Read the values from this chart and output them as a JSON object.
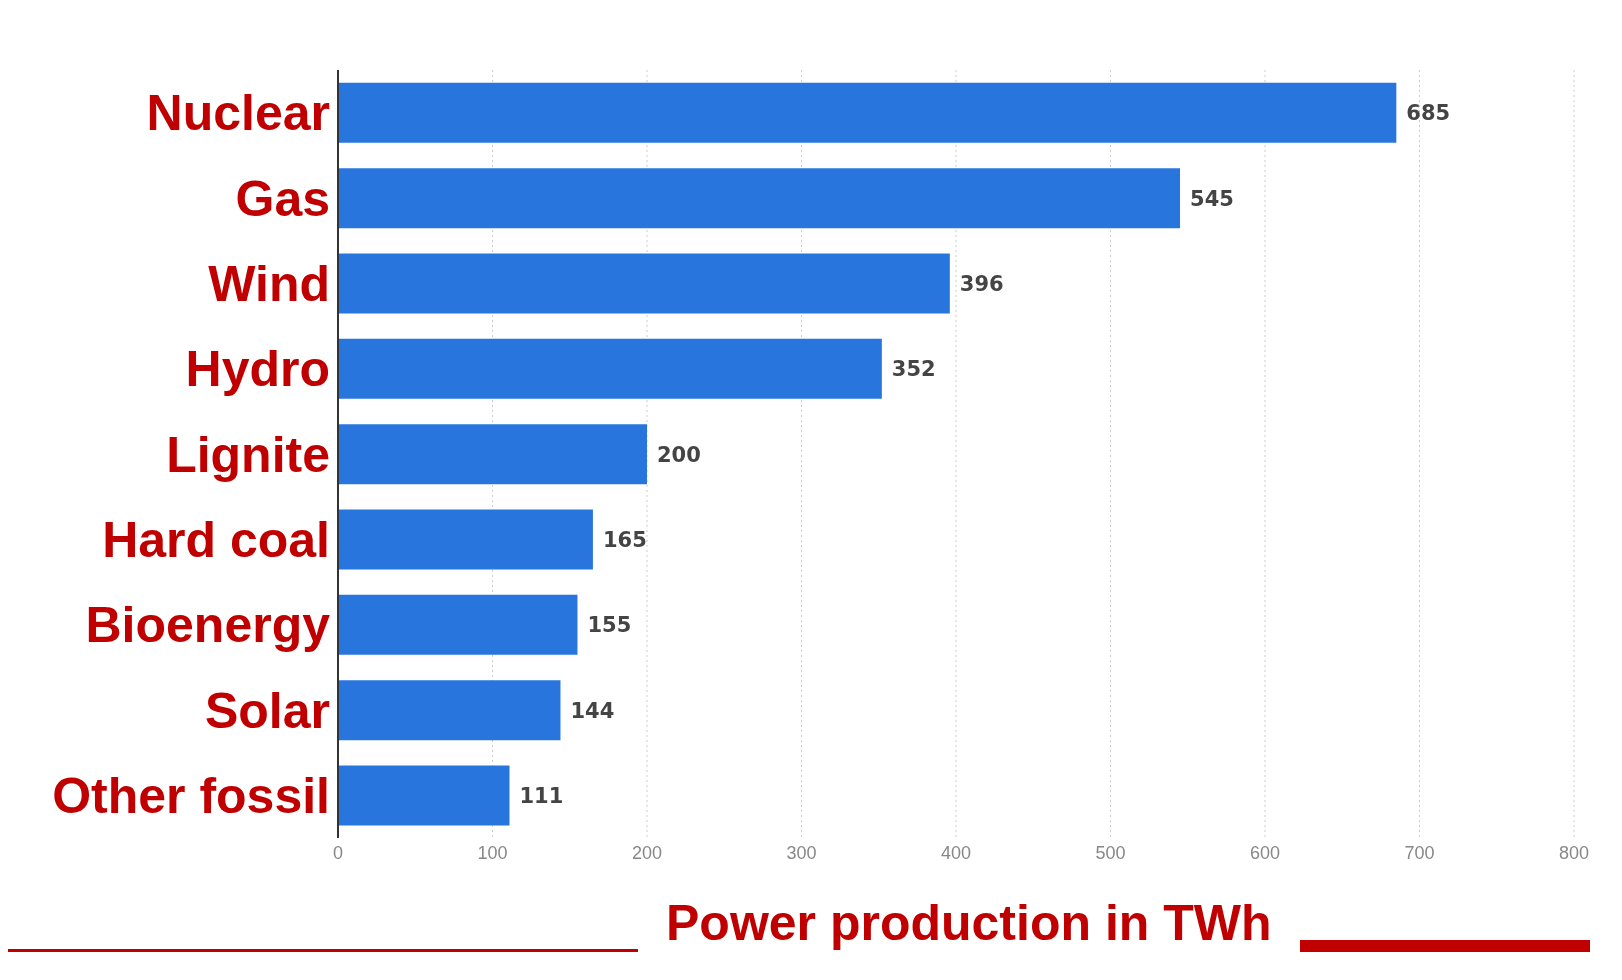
{
  "chart_data": {
    "type": "bar",
    "orientation": "horizontal",
    "xlabel": "Power production in TWh",
    "categories": [
      "Nuclear",
      "Gas",
      "Wind",
      "Hydro",
      "Lignite",
      "Hard coal",
      "Bioenergy",
      "Solar",
      "Other fossil"
    ],
    "values": [
      685,
      545,
      396,
      352,
      200,
      165,
      155,
      144,
      111
    ],
    "color": "#2876dd",
    "xlim": [
      0,
      800
    ],
    "xticks": [
      0,
      100,
      200,
      300,
      400,
      500,
      600,
      700,
      800
    ],
    "grid": "x",
    "data_labels": true
  }
}
